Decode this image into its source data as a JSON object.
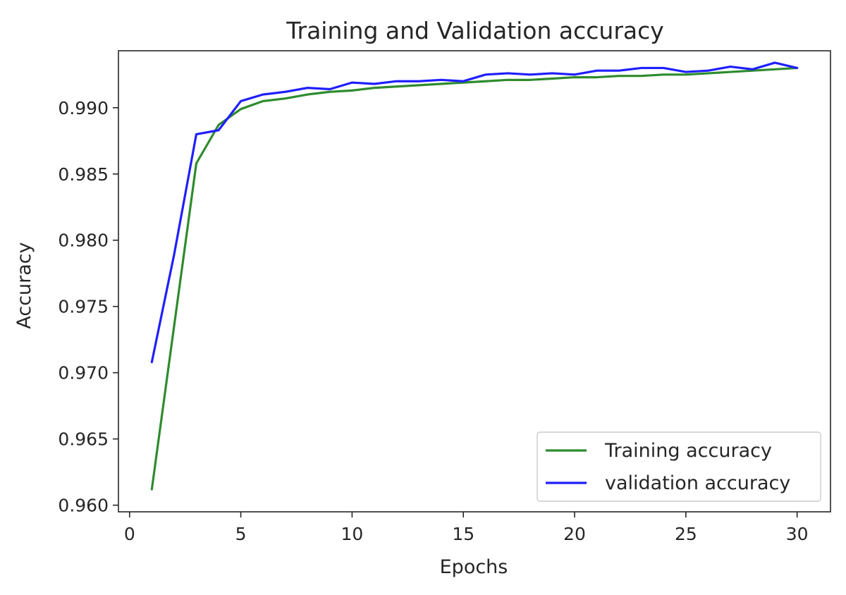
{
  "chart_data": {
    "type": "line",
    "title": "Training and Validation accuracy",
    "xlabel": "Epochs",
    "ylabel": "Accuracy",
    "xlim": [
      -0.5,
      31.5
    ],
    "ylim": [
      0.9595,
      0.9943
    ],
    "xticks": [
      0,
      5,
      10,
      15,
      20,
      25,
      30
    ],
    "yticks": [
      0.96,
      0.965,
      0.97,
      0.975,
      0.98,
      0.985,
      0.99
    ],
    "ytick_labels": [
      "0.960",
      "0.965",
      "0.970",
      "0.975",
      "0.980",
      "0.985",
      "0.990"
    ],
    "grid": false,
    "legend_position": "lower-right",
    "x": [
      1,
      2,
      3,
      4,
      5,
      6,
      7,
      8,
      9,
      10,
      11,
      12,
      13,
      14,
      15,
      16,
      17,
      18,
      19,
      20,
      21,
      22,
      23,
      24,
      25,
      26,
      27,
      28,
      29,
      30
    ],
    "series": [
      {
        "name": "Training accuracy",
        "color": "#2e8b2e",
        "values": [
          0.9612,
          0.9735,
          0.9858,
          0.9887,
          0.9899,
          0.9905,
          0.9907,
          0.991,
          0.9912,
          0.9913,
          0.9915,
          0.9916,
          0.9917,
          0.9918,
          0.9919,
          0.992,
          0.9921,
          0.9921,
          0.9922,
          0.9923,
          0.9923,
          0.9924,
          0.9924,
          0.9925,
          0.9925,
          0.9926,
          0.9927,
          0.9928,
          0.9929,
          0.993
        ]
      },
      {
        "name": "validation accuracy",
        "color": "#1f1fff",
        "values": [
          0.9708,
          0.9789,
          0.988,
          0.9883,
          0.9905,
          0.991,
          0.9912,
          0.9915,
          0.9914,
          0.9919,
          0.9918,
          0.992,
          0.992,
          0.9921,
          0.992,
          0.9925,
          0.9926,
          0.9925,
          0.9926,
          0.9925,
          0.9928,
          0.9928,
          0.993,
          0.993,
          0.9927,
          0.9928,
          0.9931,
          0.9929,
          0.9934,
          0.993
        ]
      }
    ]
  }
}
